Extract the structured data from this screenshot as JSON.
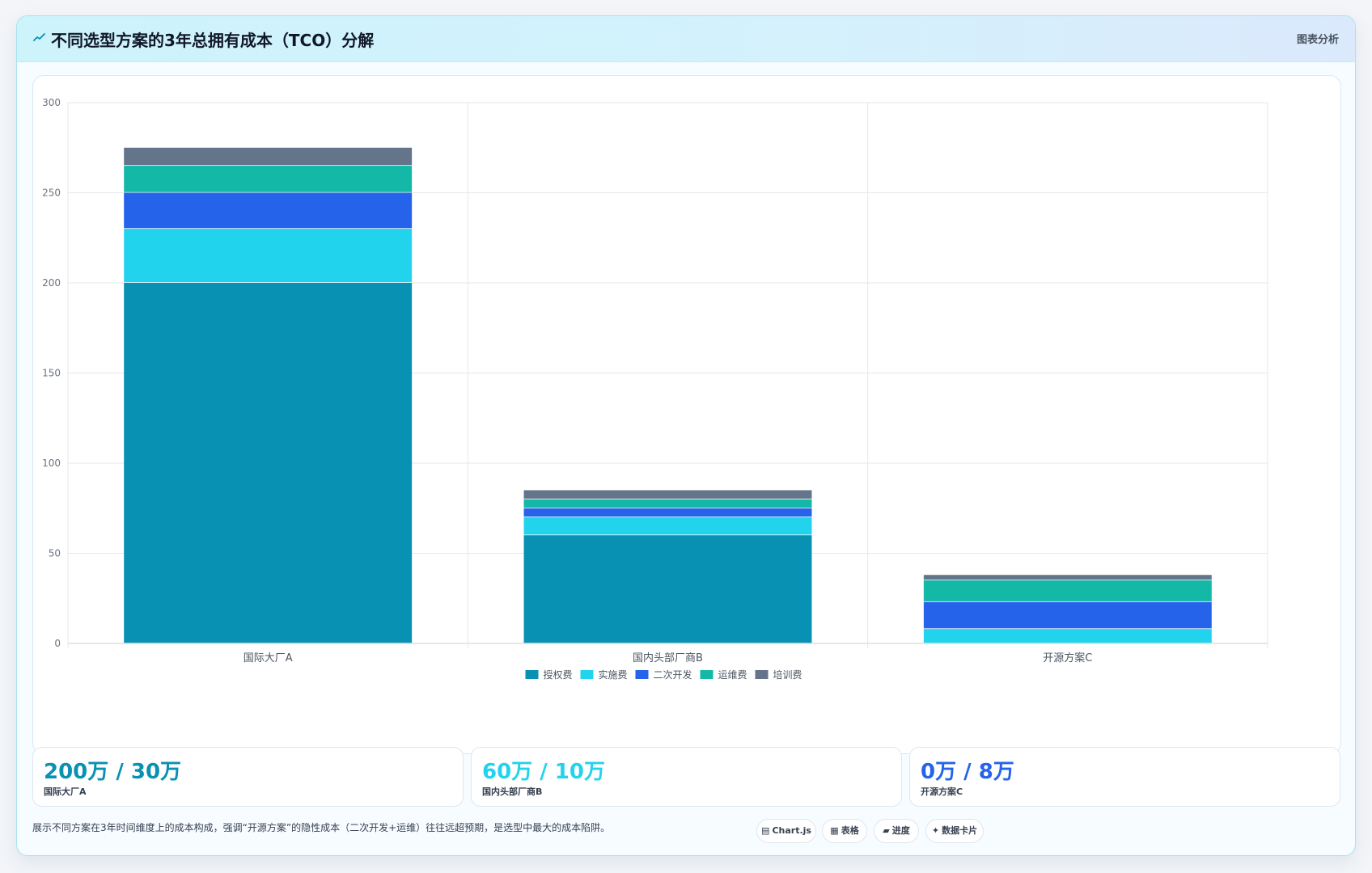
{
  "header": {
    "icon": "trend-line-icon",
    "title": "不同选型方案的3年总拥有成本（TCO）分解",
    "tag": "图表分析"
  },
  "chart_data": {
    "type": "bar",
    "stacked": true,
    "categories": [
      "国际大厂A",
      "国内头部厂商B",
      "开源方案C"
    ],
    "series": [
      {
        "name": "授权费",
        "color": "#0891b2",
        "values": [
          200,
          60,
          0
        ]
      },
      {
        "name": "实施费",
        "color": "#22d3ee",
        "values": [
          30,
          10,
          8
        ]
      },
      {
        "name": "二次开发",
        "color": "#2563eb",
        "values": [
          20,
          5,
          15
        ]
      },
      {
        "name": "运维费",
        "color": "#14b8a6",
        "values": [
          15,
          5,
          12
        ]
      },
      {
        "name": "培训费",
        "color": "#64748b",
        "values": [
          10,
          5,
          3
        ]
      }
    ],
    "ylim": [
      0,
      300
    ],
    "yticks": [
      0,
      50,
      100,
      150,
      200,
      250,
      300
    ],
    "grid": true,
    "legend": "bottom"
  },
  "stats": [
    {
      "value": "200万 / 30万",
      "label": "国际大厂A",
      "color": "#0891b2"
    },
    {
      "value": "60万 / 10万",
      "label": "国内头部厂商B",
      "color": "#22d3ee"
    },
    {
      "value": "0万 / 8万",
      "label": "开源方案C",
      "color": "#2563eb"
    }
  ],
  "footer": {
    "description": "展示不同方案在3年时间维度上的成本构成，强调“开源方案”的隐性成本（二次开发+运维）往往远超预期，是选型中最大的成本陷阱。",
    "chips": [
      {
        "icon": "chart-icon",
        "glyph": "▤",
        "label": "Chart.js"
      },
      {
        "icon": "table-icon",
        "glyph": "▦",
        "label": "表格"
      },
      {
        "icon": "progress-icon",
        "glyph": "▰",
        "label": "进度"
      },
      {
        "icon": "sparkle-icon",
        "glyph": "✦",
        "label": "数据卡片"
      }
    ]
  }
}
